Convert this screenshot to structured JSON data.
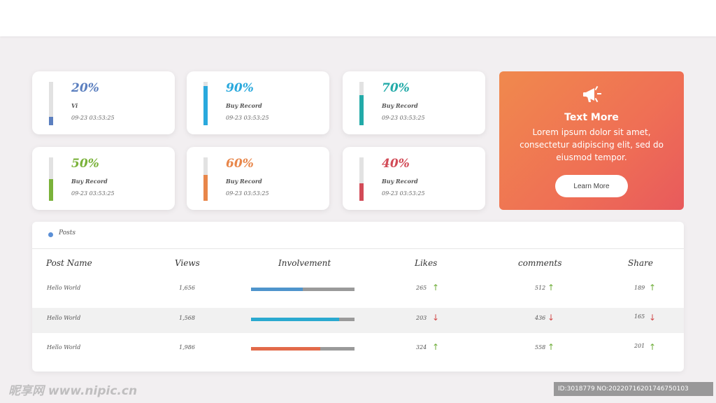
{
  "stat_cards": [
    {
      "percent": "20%",
      "level": 0.2,
      "label": "Vi",
      "timestamp": "09-23  03:53:25",
      "color": "#5b7fbf"
    },
    {
      "percent": "90%",
      "level": 0.9,
      "label": "Buy Record",
      "timestamp": "09-23  03:53:25",
      "color": "#2aa9dd"
    },
    {
      "percent": "70%",
      "level": 0.7,
      "label": "Buy Record",
      "timestamp": "09-23  03:53:25",
      "color": "#22aaa8"
    },
    {
      "percent": "50%",
      "level": 0.5,
      "label": "Buy Record",
      "timestamp": "09-23  03:53:25",
      "color": "#7ab23a"
    },
    {
      "percent": "60%",
      "level": 0.6,
      "label": "Buy Record",
      "timestamp": "09-23  03:53:25",
      "color": "#e8864a"
    },
    {
      "percent": "40%",
      "level": 0.4,
      "label": "Buy Record",
      "timestamp": "09-23  03:53:25",
      "color": "#d24b57"
    }
  ],
  "promo": {
    "icon": "megaphone-icon",
    "title": "Text More",
    "description": "Lorem ipsum dolor sit amet, consectetur adipiscing elit, sed do eiusmod tempor.",
    "button_label": "Learn More"
  },
  "posts": {
    "title": "Posts",
    "columns": {
      "post_name": "Post Name",
      "views": "Views",
      "involvement": "Involvement",
      "likes": "Likes",
      "comments": "comments",
      "share": "Share"
    },
    "rows": [
      {
        "name": "Hello World",
        "views": "1,656",
        "involvement": 0.5,
        "involvement_color": "#4f94cc",
        "likes": "265",
        "likes_trend": "up",
        "comments": "512",
        "comments_trend": "up",
        "share": "189",
        "share_trend": "up"
      },
      {
        "name": "Hello World",
        "views": "1,568",
        "involvement": 0.85,
        "involvement_color": "#2aa9d0",
        "likes": "203",
        "likes_trend": "down",
        "comments": "436",
        "comments_trend": "down",
        "share": "165",
        "share_trend": "down"
      },
      {
        "name": "Hello World",
        "views": "1,986",
        "involvement": 0.67,
        "involvement_color": "#e26a4a",
        "likes": "324",
        "likes_trend": "up",
        "comments": "558",
        "comments_trend": "up",
        "share": "201",
        "share_trend": "up"
      }
    ]
  },
  "watermark": {
    "site": "昵享网 www.nipic.cn",
    "id_text": "ID:3018779 NO:20220716201746750103"
  }
}
